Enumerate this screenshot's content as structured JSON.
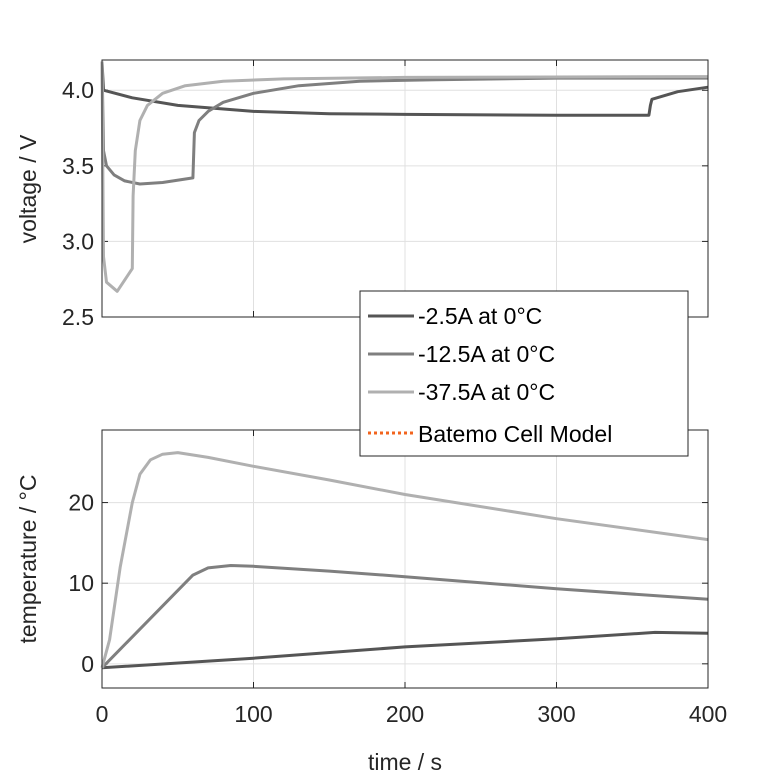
{
  "chart_data": [
    {
      "type": "line",
      "xlabel": "",
      "ylabel": "voltage / V",
      "xlim": [
        0,
        400
      ],
      "ylim": [
        2.5,
        4.2
      ],
      "xticks": [
        0,
        100,
        200,
        300,
        400
      ],
      "yticks": [
        2.5,
        3.0,
        3.5,
        4.0
      ],
      "ytick_labels": [
        "2.5",
        "3.0",
        "3.5",
        "4.0"
      ],
      "grid": true,
      "series": [
        {
          "name": "-2.5A at 0°C",
          "color": "#555555",
          "x": [
            0,
            1,
            20,
            50,
            100,
            150,
            200,
            300,
            361,
            362,
            363,
            380,
            400
          ],
          "y": [
            4.19,
            4.0,
            3.95,
            3.9,
            3.86,
            3.845,
            3.84,
            3.835,
            3.835,
            3.9,
            3.94,
            3.99,
            4.02
          ]
        },
        {
          "name": "-12.5A at 0°C",
          "color": "#7f7f7f",
          "x": [
            0,
            1,
            3,
            8,
            15,
            25,
            40,
            60,
            61,
            64,
            70,
            80,
            100,
            130,
            170,
            220,
            300,
            400
          ],
          "y": [
            4.19,
            3.6,
            3.5,
            3.44,
            3.4,
            3.38,
            3.39,
            3.42,
            3.72,
            3.8,
            3.86,
            3.92,
            3.98,
            4.03,
            4.06,
            4.07,
            4.08,
            4.08
          ]
        },
        {
          "name": "-37.5A at 0°C",
          "color": "#b0b0b0",
          "x": [
            0,
            0.5,
            1,
            3,
            10,
            20,
            20.5,
            22,
            25,
            30,
            40,
            55,
            80,
            120,
            200,
            400
          ],
          "y": [
            4.19,
            3.5,
            2.9,
            2.73,
            2.67,
            2.82,
            3.3,
            3.6,
            3.8,
            3.9,
            3.98,
            4.03,
            4.06,
            4.075,
            4.085,
            4.09
          ]
        }
      ]
    },
    {
      "type": "line",
      "xlabel": "time / s",
      "ylabel": "temperature / °C",
      "xlim": [
        0,
        400
      ],
      "ylim": [
        -3,
        29
      ],
      "xticks": [
        0,
        100,
        200,
        300,
        400
      ],
      "xtick_labels": [
        "0",
        "100",
        "200",
        "300",
        "400"
      ],
      "yticks": [
        0,
        10,
        20
      ],
      "ytick_labels": [
        "0",
        "10",
        "20"
      ],
      "grid": true,
      "series": [
        {
          "name": "-2.5A at 0°C",
          "color": "#555555",
          "x": [
            0,
            100,
            200,
            300,
            365,
            400
          ],
          "y": [
            -0.5,
            0.7,
            2.1,
            3.1,
            3.9,
            3.8
          ]
        },
        {
          "name": "-12.5A at 0°C",
          "color": "#7f7f7f",
          "x": [
            0,
            60,
            70,
            85,
            100,
            150,
            200,
            300,
            400
          ],
          "y": [
            -0.5,
            11,
            11.9,
            12.2,
            12.1,
            11.5,
            10.8,
            9.3,
            8.0
          ]
        },
        {
          "name": "-37.5A at 0°C",
          "color": "#b0b0b0",
          "x": [
            0,
            5,
            12,
            20,
            25,
            32,
            40,
            50,
            70,
            100,
            150,
            200,
            300,
            400
          ],
          "y": [
            -0.5,
            3,
            12,
            20,
            23.5,
            25.3,
            26,
            26.2,
            25.6,
            24.5,
            22.8,
            21,
            18,
            15.4
          ]
        }
      ]
    }
  ],
  "legend": {
    "placement": "center-right",
    "entries": [
      {
        "label": "-2.5A at 0°C",
        "color": "#555555",
        "style": "solid"
      },
      {
        "label": "-12.5A at 0°C",
        "color": "#7f7f7f",
        "style": "solid"
      },
      {
        "label": "-37.5A at 0°C",
        "color": "#b0b0b0",
        "style": "solid"
      },
      {
        "label": "Batemo Cell Model",
        "color": "#f2641e",
        "style": "dotted"
      }
    ]
  }
}
